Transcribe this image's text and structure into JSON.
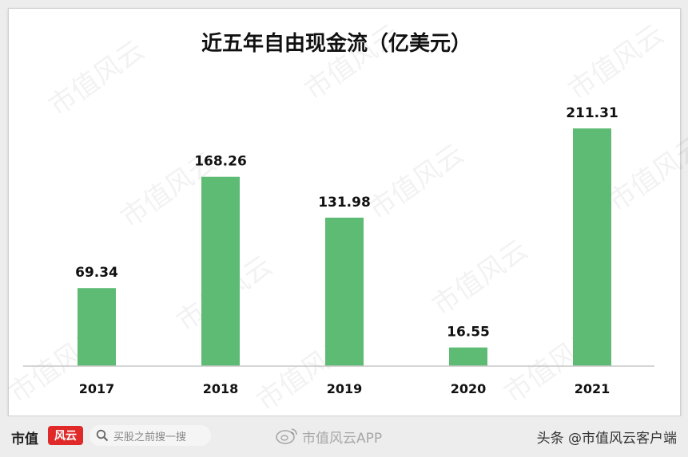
{
  "chart_data": {
    "type": "bar",
    "title": "近五年自由现金流（亿美元）",
    "categories": [
      "2017",
      "2018",
      "2019",
      "2020",
      "2021"
    ],
    "values": [
      69.34,
      168.26,
      131.98,
      16.55,
      211.31
    ],
    "value_labels": [
      "69.34",
      "168.26",
      "131.98",
      "16.55",
      "211.31"
    ],
    "ylim": [
      0,
      211.31
    ],
    "grid": false,
    "bar_color": "#5dbb74"
  },
  "watermark": "市值风云",
  "footer": {
    "brand": "市值",
    "logo_text": "风云",
    "search_text": "买股之前搜一搜",
    "app_text": "市值风云APP",
    "credit": "头条 @市值风云客户端"
  },
  "icons": {
    "search": "search-icon",
    "weibo": "weibo-icon"
  }
}
